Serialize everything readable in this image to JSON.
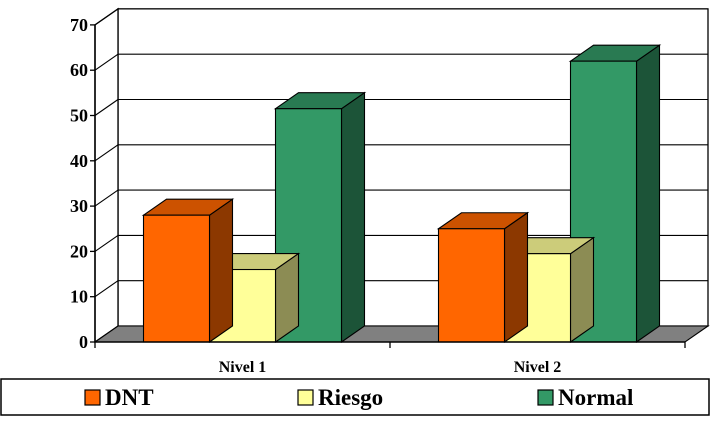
{
  "chart_data": {
    "type": "bar",
    "three_d": true,
    "categories": [
      "Nivel 1",
      "Nivel 2"
    ],
    "series": [
      {
        "name": "DNT",
        "values": [
          28,
          25
        ],
        "color": "#FF6600"
      },
      {
        "name": "Riesgo",
        "values": [
          16,
          19.5
        ],
        "color": "#FFFF99"
      },
      {
        "name": "Normal",
        "values": [
          51.5,
          62
        ],
        "color": "#339966"
      }
    ],
    "ylim": [
      0,
      70
    ],
    "yticks": [
      "0",
      "10",
      "20",
      "30",
      "40",
      "50",
      "60",
      "70"
    ],
    "grid": true,
    "legend": "bottom",
    "title": "",
    "xlabel": "",
    "ylabel": ""
  }
}
